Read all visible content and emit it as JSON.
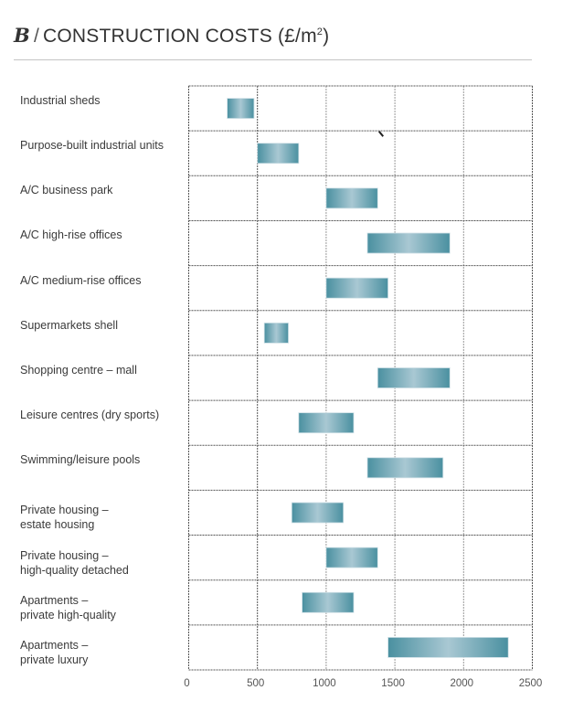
{
  "header": {
    "letter": "B",
    "separator": "/",
    "title_main": "CONSTRUCTION COSTS (£/m",
    "title_sup": "2",
    "title_end": ")"
  },
  "chart_data": {
    "type": "bar",
    "orientation": "horizontal-range",
    "title": "CONSTRUCTION COSTS (£/m²)",
    "xlabel": "",
    "ylabel": "",
    "xlim": [
      0,
      2500
    ],
    "xticks": [
      0,
      500,
      1000,
      1500,
      2000,
      2500
    ],
    "xtick_labels": [
      "0",
      "500",
      "1000",
      "1500",
      "2000",
      "2500"
    ],
    "grid": true,
    "bar_color": "#4a90a0",
    "bar_highlight": "#a9c8d3",
    "categories": [
      "Industrial sheds",
      "Purpose-built industrial units",
      "A/C business park",
      "A/C high-rise offices",
      "A/C medium-rise offices",
      "Supermarkets shell",
      "Shopping centre – mall",
      "Leisure centres (dry sports)",
      "Swimming/leisure pools",
      "Private housing –\nestate housing",
      "Private housing –\nhigh-quality detached",
      "Apartments –\nprivate high-quality",
      "Apartments –\nprivate luxury"
    ],
    "ranges": [
      [
        280,
        475
      ],
      [
        500,
        800
      ],
      [
        1000,
        1375
      ],
      [
        1300,
        1900
      ],
      [
        1000,
        1450
      ],
      [
        550,
        725
      ],
      [
        1375,
        1900
      ],
      [
        800,
        1200
      ],
      [
        1300,
        1850
      ],
      [
        750,
        1125
      ],
      [
        1000,
        1375
      ],
      [
        825,
        1200
      ],
      [
        1450,
        2325
      ]
    ]
  }
}
